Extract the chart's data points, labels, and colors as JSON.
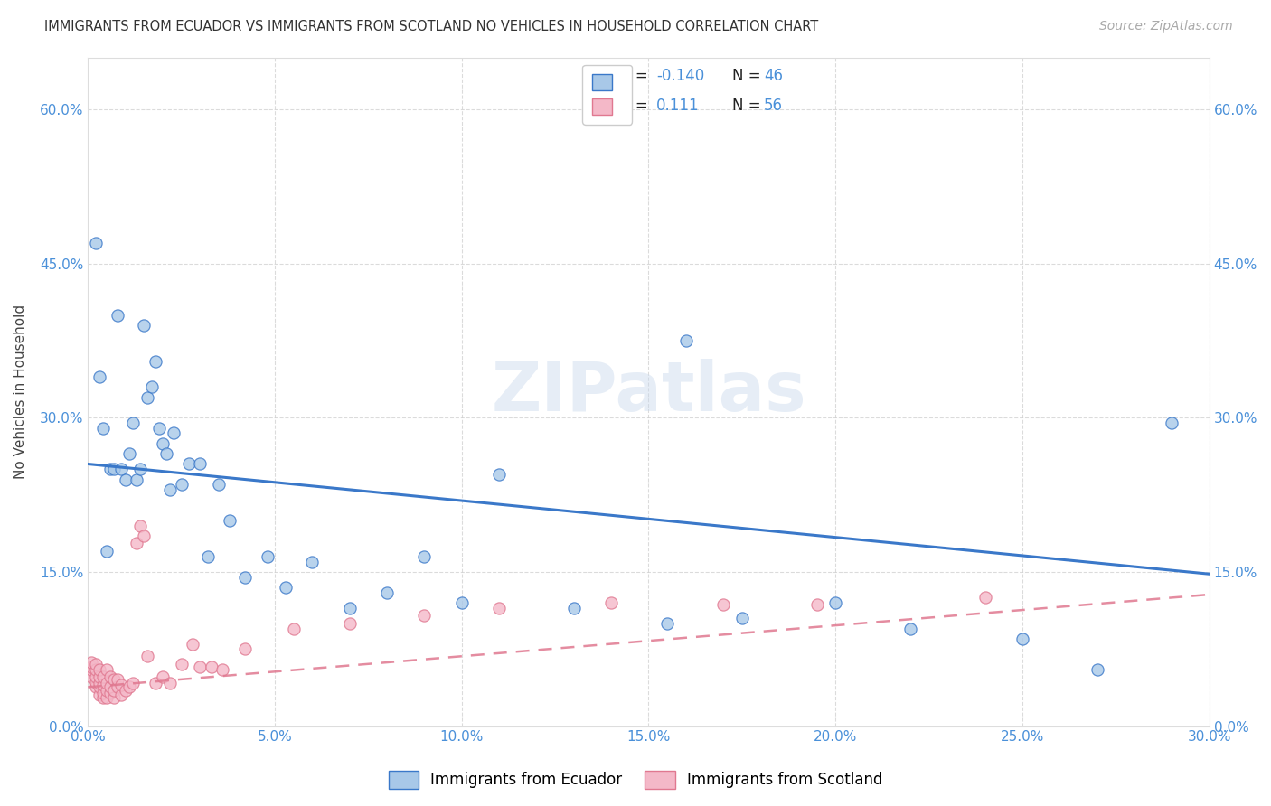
{
  "title": "IMMIGRANTS FROM ECUADOR VS IMMIGRANTS FROM SCOTLAND NO VEHICLES IN HOUSEHOLD CORRELATION CHART",
  "source": "Source: ZipAtlas.com",
  "ylabel": "No Vehicles in Household",
  "xlim": [
    0.0,
    0.3
  ],
  "ylim": [
    0.0,
    0.65
  ],
  "xticks": [
    0.0,
    0.05,
    0.1,
    0.15,
    0.2,
    0.25,
    0.3
  ],
  "yticks": [
    0.0,
    0.15,
    0.3,
    0.45,
    0.6
  ],
  "ecuador_R": -0.14,
  "ecuador_N": 46,
  "scotland_R": 0.111,
  "scotland_N": 56,
  "ecuador_color": "#a8c8e8",
  "scotland_color": "#f4b8c8",
  "ecuador_line_color": "#3a78c9",
  "scotland_line_color": "#e07890",
  "background_color": "#ffffff",
  "watermark": "ZIPatlas",
  "ecuador_line_x0": 0.0,
  "ecuador_line_y0": 0.255,
  "ecuador_line_x1": 0.3,
  "ecuador_line_y1": 0.148,
  "scotland_line_x0": 0.0,
  "scotland_line_y0": 0.038,
  "scotland_line_x1": 0.3,
  "scotland_line_y1": 0.128,
  "ecuador_x": [
    0.002,
    0.003,
    0.004,
    0.005,
    0.006,
    0.007,
    0.008,
    0.009,
    0.01,
    0.011,
    0.012,
    0.013,
    0.014,
    0.015,
    0.016,
    0.017,
    0.018,
    0.019,
    0.02,
    0.021,
    0.022,
    0.023,
    0.025,
    0.027,
    0.03,
    0.032,
    0.035,
    0.038,
    0.042,
    0.048,
    0.053,
    0.06,
    0.07,
    0.08,
    0.09,
    0.1,
    0.11,
    0.13,
    0.155,
    0.16,
    0.175,
    0.2,
    0.22,
    0.25,
    0.27,
    0.29
  ],
  "ecuador_y": [
    0.47,
    0.34,
    0.29,
    0.17,
    0.25,
    0.25,
    0.4,
    0.25,
    0.24,
    0.265,
    0.295,
    0.24,
    0.25,
    0.39,
    0.32,
    0.33,
    0.355,
    0.29,
    0.275,
    0.265,
    0.23,
    0.285,
    0.235,
    0.255,
    0.255,
    0.165,
    0.235,
    0.2,
    0.145,
    0.165,
    0.135,
    0.16,
    0.115,
    0.13,
    0.165,
    0.12,
    0.245,
    0.115,
    0.1,
    0.375,
    0.105,
    0.12,
    0.095,
    0.085,
    0.055,
    0.295
  ],
  "scotland_x": [
    0.001,
    0.001,
    0.001,
    0.001,
    0.002,
    0.002,
    0.002,
    0.002,
    0.002,
    0.003,
    0.003,
    0.003,
    0.003,
    0.003,
    0.004,
    0.004,
    0.004,
    0.004,
    0.005,
    0.005,
    0.005,
    0.005,
    0.006,
    0.006,
    0.006,
    0.007,
    0.007,
    0.007,
    0.008,
    0.008,
    0.009,
    0.009,
    0.01,
    0.011,
    0.012,
    0.013,
    0.014,
    0.015,
    0.016,
    0.018,
    0.02,
    0.022,
    0.025,
    0.028,
    0.03,
    0.033,
    0.036,
    0.042,
    0.055,
    0.07,
    0.09,
    0.11,
    0.14,
    0.17,
    0.195,
    0.24
  ],
  "scotland_y": [
    0.048,
    0.055,
    0.058,
    0.062,
    0.038,
    0.043,
    0.048,
    0.055,
    0.06,
    0.03,
    0.038,
    0.042,
    0.048,
    0.055,
    0.028,
    0.032,
    0.04,
    0.048,
    0.028,
    0.035,
    0.042,
    0.055,
    0.032,
    0.038,
    0.048,
    0.028,
    0.035,
    0.045,
    0.038,
    0.045,
    0.03,
    0.04,
    0.035,
    0.038,
    0.042,
    0.178,
    0.195,
    0.185,
    0.068,
    0.042,
    0.048,
    0.042,
    0.06,
    0.08,
    0.058,
    0.058,
    0.055,
    0.075,
    0.095,
    0.1,
    0.108,
    0.115,
    0.12,
    0.118,
    0.118,
    0.125
  ]
}
